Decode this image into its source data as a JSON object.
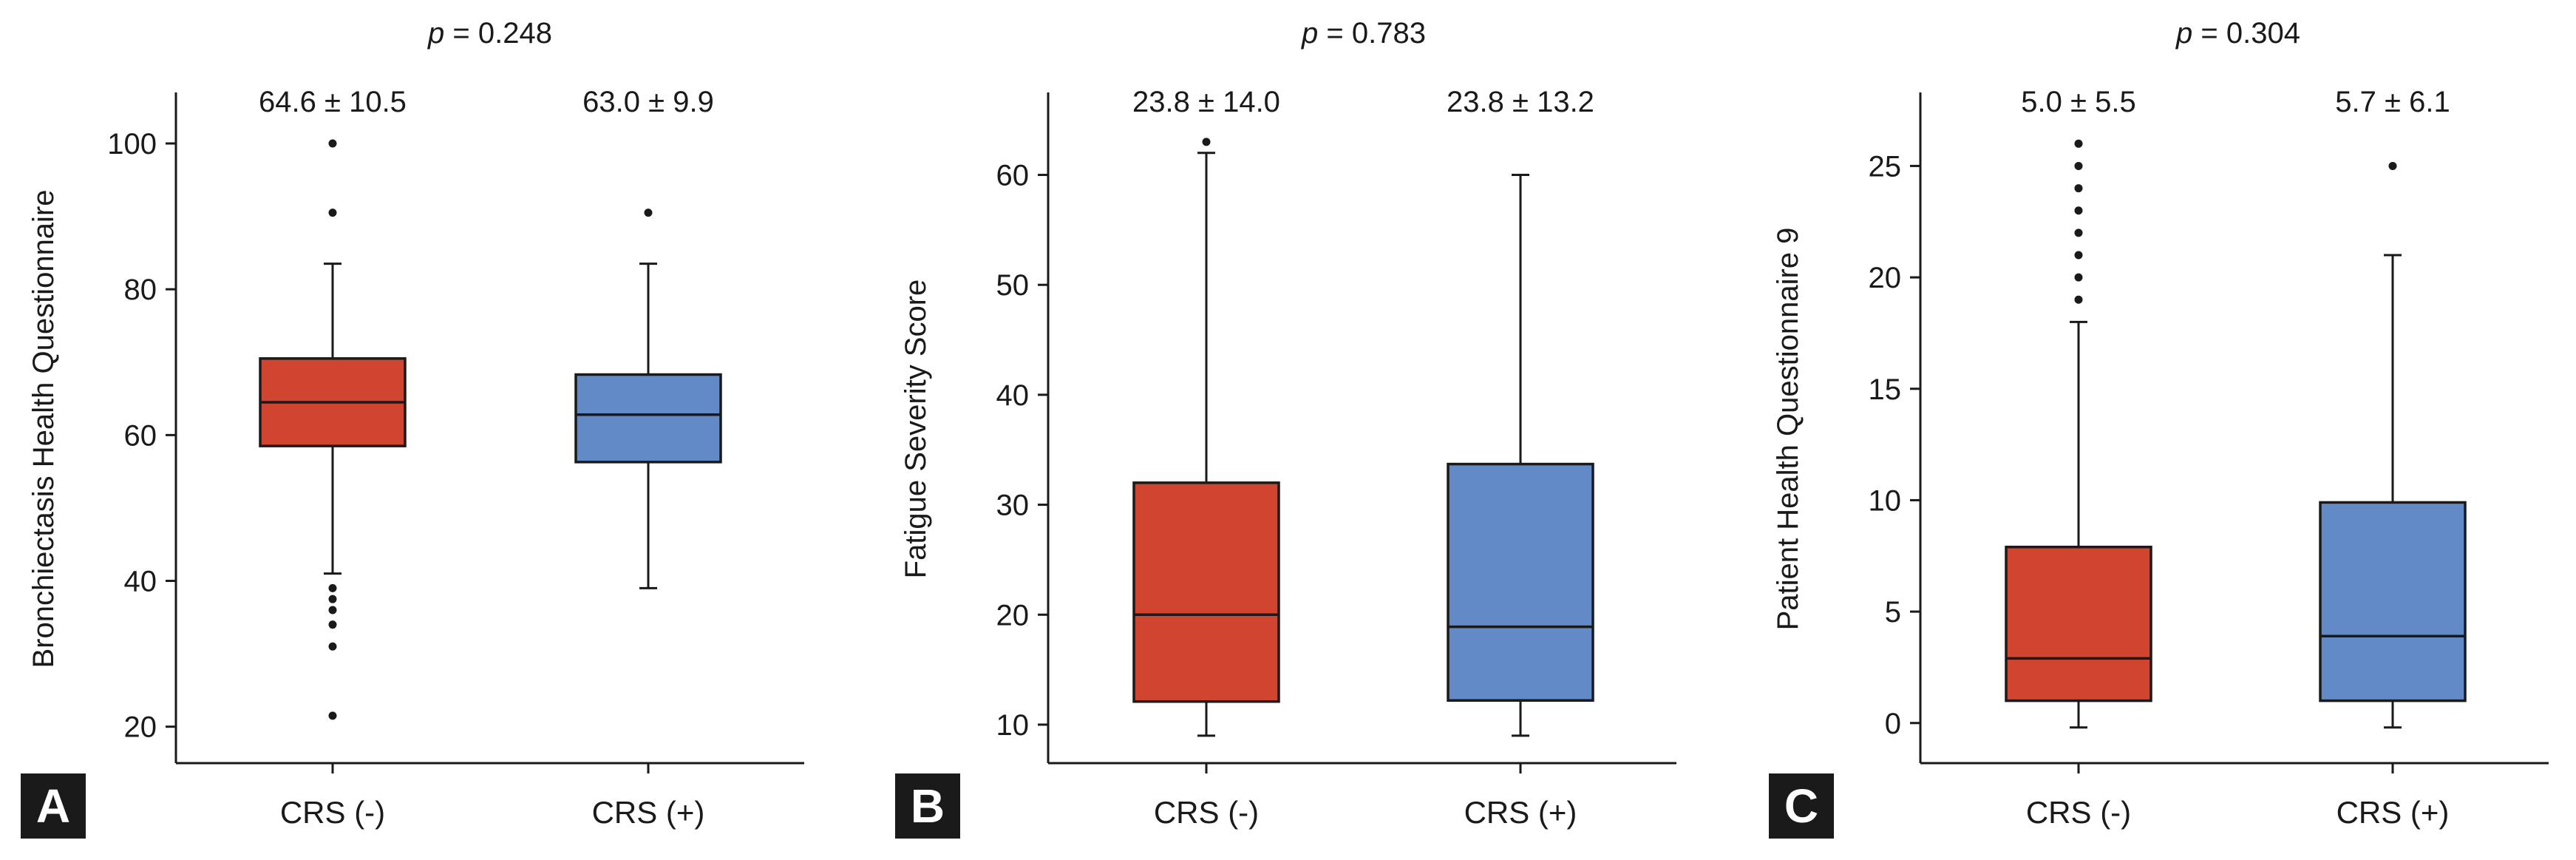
{
  "chart_data": [
    {
      "panel": "A",
      "type": "box",
      "p_label": "p",
      "p_text": " = 0.248",
      "ylabel": "Bronchiectasis Health Questionnaire",
      "ylim": [
        15,
        107
      ],
      "yticks": [
        20,
        40,
        60,
        80,
        100
      ],
      "categories": [
        "CRS (-)",
        "CRS (+)"
      ],
      "series": [
        {
          "name": "CRS (-)",
          "color": "#d14530",
          "stat_text": "64.6 ± 10.5",
          "whisker_low": 41,
          "q1": 58.5,
          "median": 64.5,
          "q3": 70.5,
          "whisker_high": 83.5,
          "outliers": [
            100,
            90.5,
            39,
            37.5,
            36,
            34,
            31,
            21.5
          ]
        },
        {
          "name": "CRS (+)",
          "color": "#628ac6",
          "stat_text": "63.0 ± 9.9",
          "whisker_low": 39,
          "q1": 56.3,
          "median": 62.8,
          "q3": 68.3,
          "whisker_high": 83.5,
          "outliers": [
            90.5
          ]
        }
      ]
    },
    {
      "panel": "B",
      "type": "box",
      "p_label": "p",
      "p_text": " = 0.783",
      "ylabel": "Fatigue Severity Score",
      "ylim": [
        6.5,
        67.5
      ],
      "yticks": [
        10,
        20,
        30,
        40,
        50,
        60
      ],
      "categories": [
        "CRS (-)",
        "CRS (+)"
      ],
      "series": [
        {
          "name": "CRS (-)",
          "color": "#d14530",
          "stat_text": "23.8 ± 14.0",
          "whisker_low": 9,
          "q1": 12.1,
          "median": 20,
          "q3": 32,
          "whisker_high": 62,
          "outliers": [
            63
          ]
        },
        {
          "name": "CRS (+)",
          "color": "#628ac6",
          "stat_text": "23.8 ± 13.2",
          "whisker_low": 9,
          "q1": 12.2,
          "median": 18.9,
          "q3": 33.7,
          "whisker_high": 60,
          "outliers": []
        }
      ]
    },
    {
      "panel": "C",
      "type": "box",
      "p_label": "p",
      "p_text": " = 0.304",
      "ylabel": "Patient Health Questionnaire 9",
      "ylim": [
        -1.8,
        28.3
      ],
      "yticks": [
        0,
        5,
        10,
        15,
        20,
        25
      ],
      "categories": [
        "CRS (-)",
        "CRS (+)"
      ],
      "series": [
        {
          "name": "CRS (-)",
          "color": "#d14530",
          "stat_text": "5.0 ± 5.5",
          "whisker_low": -0.2,
          "q1": 1,
          "median": 2.9,
          "q3": 7.9,
          "whisker_high": 18,
          "outliers": [
            26,
            25,
            24,
            23,
            22,
            21,
            20,
            19
          ]
        },
        {
          "name": "CRS (+)",
          "color": "#628ac6",
          "stat_text": "5.7 ± 6.1",
          "whisker_low": -0.2,
          "q1": 1,
          "median": 3.9,
          "q3": 9.9,
          "whisker_high": 21,
          "outliers": [
            25
          ]
        }
      ]
    }
  ]
}
